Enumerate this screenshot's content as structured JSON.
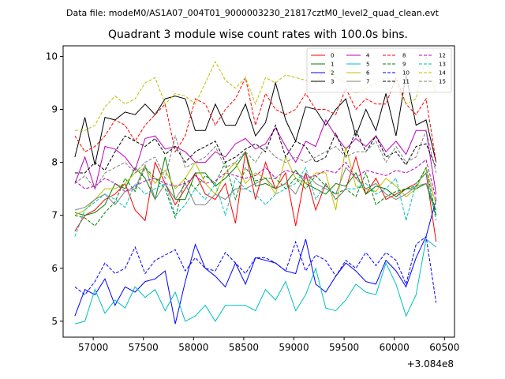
{
  "chart_data": {
    "type": "line",
    "suptitle": "Data file: modeM0/AS1A07_004T01_9000003230_21817cztM0_level2_quad_clean.evt",
    "title": "Quadrant 3 module wise count rates with 100.0s bins.",
    "xlabel": "",
    "ylabel": "",
    "x_offset_label": "+3.084e8",
    "xlim": [
      56700,
      60600
    ],
    "ylim": [
      4.7,
      10.2
    ],
    "xticks": [
      57000,
      57500,
      58000,
      58500,
      59000,
      59500,
      60000,
      60500
    ],
    "xtick_labels": [
      "57000",
      "57500",
      "58000",
      "58500",
      "59000",
      "59500",
      "60000",
      "60500"
    ],
    "yticks": [
      5,
      6,
      7,
      8,
      9,
      10
    ],
    "ytick_labels": [
      "5",
      "6",
      "7",
      "8",
      "9",
      "10"
    ],
    "x": [
      56817,
      56917,
      57017,
      57117,
      57217,
      57317,
      57417,
      57517,
      57617,
      57717,
      57817,
      57917,
      58017,
      58117,
      58217,
      58317,
      58417,
      58517,
      58617,
      58717,
      58817,
      58917,
      59017,
      59117,
      59217,
      59317,
      59417,
      59517,
      59617,
      59717,
      59817,
      59917,
      60017,
      60117,
      60217,
      60317,
      60417
    ],
    "series": [
      {
        "name": "0",
        "color": "#ff0000",
        "dash": "solid",
        "values": [
          6.7,
          7.0,
          7.1,
          7.3,
          7.4,
          7.6,
          7.1,
          6.9,
          8.0,
          7.6,
          7.2,
          7.5,
          7.8,
          7.4,
          7.3,
          7.6,
          6.85,
          8.2,
          7.3,
          8.0,
          7.5,
          7.8,
          6.8,
          7.8,
          7.1,
          7.6,
          7.3,
          7.5,
          8.1,
          7.4,
          7.7,
          7.3,
          7.4,
          7.5,
          7.6,
          7.8,
          6.5
        ]
      },
      {
        "name": "1",
        "color": "#008000",
        "dash": "solid",
        "values": [
          7.05,
          7.0,
          7.05,
          7.2,
          7.6,
          7.5,
          7.9,
          7.7,
          7.3,
          8.1,
          7.3,
          7.3,
          7.8,
          7.8,
          7.55,
          7.7,
          7.9,
          8.2,
          7.55,
          7.6,
          7.5,
          7.6,
          7.85,
          7.6,
          7.5,
          7.4,
          7.6,
          7.55,
          7.8,
          7.4,
          7.55,
          7.5,
          7.35,
          7.5,
          7.5,
          7.6,
          7.0
        ]
      },
      {
        "name": "2",
        "color": "#0000ff",
        "dash": "solid",
        "values": [
          5.1,
          5.6,
          5.5,
          5.8,
          5.3,
          5.65,
          5.55,
          5.75,
          5.8,
          5.95,
          4.95,
          5.75,
          6.45,
          6.0,
          5.85,
          5.65,
          6.1,
          5.7,
          6.2,
          6.15,
          6.1,
          5.95,
          5.9,
          6.55,
          5.7,
          5.55,
          5.85,
          6.1,
          5.95,
          5.75,
          5.7,
          6.15,
          5.95,
          5.65,
          6.2,
          6.6,
          7.3
        ]
      },
      {
        "name": "3",
        "color": "#000000",
        "dash": "solid",
        "values": [
          8.1,
          8.85,
          7.95,
          8.85,
          8.8,
          8.95,
          8.9,
          9.1,
          8.9,
          9.2,
          9.25,
          9.2,
          8.6,
          8.6,
          9.1,
          8.7,
          8.7,
          9.1,
          8.5,
          8.75,
          9.5,
          8.8,
          8.4,
          9.05,
          9.0,
          8.7,
          9.0,
          9.2,
          8.5,
          9.0,
          8.6,
          9.3,
          8.5,
          9.65,
          8.7,
          8.8,
          8.0
        ]
      },
      {
        "name": "4",
        "color": "#bf00bf",
        "dash": "solid",
        "values": [
          7.6,
          8.1,
          7.5,
          8.3,
          8.25,
          8.1,
          7.85,
          8.45,
          8.5,
          8.25,
          8.3,
          8.2,
          8.0,
          8.0,
          8.2,
          8.1,
          8.35,
          8.45,
          8.25,
          8.35,
          8.65,
          8.3,
          8.0,
          8.4,
          8.3,
          8.8,
          8.5,
          8.25,
          8.45,
          8.3,
          8.5,
          8.2,
          8.4,
          8.15,
          8.6,
          8.6,
          7.4
        ]
      },
      {
        "name": "5",
        "color": "#00bfbf",
        "dash": "solid",
        "values": [
          4.95,
          5.0,
          5.6,
          5.15,
          5.4,
          5.25,
          5.65,
          5.45,
          5.6,
          5.2,
          5.55,
          5.0,
          5.1,
          5.3,
          5.0,
          5.3,
          5.3,
          5.3,
          5.2,
          5.6,
          5.4,
          5.75,
          5.2,
          5.5,
          6.0,
          5.25,
          5.2,
          5.4,
          5.7,
          5.55,
          5.5,
          6.1,
          5.7,
          5.1,
          5.5,
          6.55,
          6.4
        ]
      },
      {
        "name": "6",
        "color": "#bfbf00",
        "dash": "solid",
        "values": [
          7.0,
          7.1,
          7.3,
          7.5,
          7.5,
          7.6,
          7.8,
          7.9,
          7.6,
          7.85,
          7.5,
          7.7,
          8.0,
          7.6,
          7.4,
          7.8,
          8.0,
          7.6,
          7.8,
          7.7,
          7.4,
          8.1,
          7.7,
          7.6,
          7.8,
          7.8,
          7.1,
          8.3,
          7.55,
          7.5,
          7.45,
          7.7,
          7.55,
          7.35,
          7.5,
          7.9,
          7.2
        ]
      },
      {
        "name": "7",
        "color": "#808080",
        "dash": "solid",
        "values": [
          7.1,
          7.15,
          7.3,
          7.4,
          7.2,
          7.45,
          7.5,
          7.95,
          7.3,
          7.6,
          7.3,
          7.6,
          7.2,
          7.2,
          7.4,
          7.3,
          7.5,
          7.5,
          7.6,
          7.7,
          7.5,
          7.6,
          7.4,
          7.8,
          7.6,
          7.5,
          7.4,
          7.9,
          7.7,
          7.5,
          7.6,
          7.4,
          7.3,
          7.4,
          7.55,
          7.6,
          7.1
        ]
      },
      {
        "name": "8",
        "color": "#ff0000",
        "dash": "dashed",
        "values": [
          8.5,
          8.2,
          8.3,
          8.5,
          8.8,
          8.7,
          8.4,
          8.7,
          8.9,
          9.1,
          8.2,
          8.5,
          9.2,
          9.1,
          8.7,
          9.0,
          9.2,
          9.6,
          8.7,
          9.3,
          9.0,
          8.9,
          9.0,
          9.3,
          9.0,
          9.0,
          8.9,
          9.4,
          9.0,
          9.2,
          9.1,
          9.1,
          9.6,
          9.1,
          8.9,
          9.2,
          8.0
        ]
      },
      {
        "name": "9",
        "color": "#008000",
        "dash": "dashed",
        "values": [
          7.0,
          6.95,
          6.8,
          7.05,
          7.25,
          7.7,
          7.45,
          7.9,
          7.7,
          7.5,
          6.95,
          7.7,
          7.5,
          7.75,
          7.6,
          8.0,
          7.3,
          7.9,
          7.65,
          7.7,
          7.7,
          7.5,
          7.7,
          7.5,
          7.75,
          7.55,
          7.4,
          7.5,
          7.35,
          7.8,
          7.2,
          7.35,
          7.45,
          7.5,
          7.55,
          7.9,
          7.0
        ]
      },
      {
        "name": "10",
        "color": "#0000ff",
        "dash": "dashed",
        "values": [
          5.65,
          5.5,
          5.75,
          6.1,
          5.9,
          6.0,
          6.4,
          5.9,
          6.15,
          6.25,
          6.35,
          5.95,
          6.2,
          6.0,
          5.95,
          6.3,
          6.1,
          5.9,
          6.2,
          6.2,
          6.1,
          5.95,
          6.5,
          5.95,
          6.25,
          6.15,
          5.85,
          6.15,
          6.0,
          6.3,
          6.05,
          6.3,
          6.15,
          5.7,
          6.45,
          6.6,
          5.35
        ]
      },
      {
        "name": "11",
        "color": "#000000",
        "dash": "dashed",
        "values": [
          7.8,
          7.8,
          8.0,
          7.85,
          8.2,
          8.5,
          8.4,
          8.3,
          8.45,
          8.15,
          8.3,
          8.0,
          8.2,
          8.3,
          8.4,
          8.0,
          8.1,
          8.25,
          8.35,
          8.2,
          8.7,
          8.1,
          8.4,
          8.3,
          8.0,
          8.1,
          8.55,
          8.1,
          8.6,
          8.2,
          8.5,
          8.1,
          8.2,
          7.95,
          8.3,
          8.35,
          7.9
        ]
      },
      {
        "name": "12",
        "color": "#bf00bf",
        "dash": "dashed",
        "values": [
          7.65,
          7.5,
          7.55,
          7.7,
          7.6,
          7.45,
          7.55,
          7.65,
          7.7,
          7.6,
          7.55,
          7.6,
          7.75,
          7.6,
          7.65,
          7.8,
          7.75,
          7.7,
          7.75,
          7.9,
          7.7,
          7.85,
          7.8,
          7.7,
          7.75,
          7.85,
          7.8,
          8.0,
          7.7,
          7.85,
          7.8,
          7.75,
          7.85,
          7.8,
          7.9,
          8.05,
          7.3
        ]
      },
      {
        "name": "13",
        "color": "#00bfbf",
        "dash": "dashed",
        "values": [
          6.6,
          7.1,
          7.25,
          7.4,
          7.3,
          7.15,
          7.6,
          7.4,
          7.5,
          7.6,
          7.0,
          7.2,
          7.5,
          7.3,
          7.6,
          7.0,
          7.7,
          7.5,
          7.4,
          7.2,
          7.4,
          7.5,
          7.6,
          7.9,
          7.3,
          7.6,
          7.3,
          7.5,
          7.5,
          7.6,
          7.4,
          7.5,
          7.7,
          6.9,
          7.6,
          7.8,
          6.9
        ]
      },
      {
        "name": "14",
        "color": "#bfbf00",
        "dash": "dashed",
        "values": [
          8.6,
          8.6,
          8.7,
          9.05,
          9.25,
          9.1,
          9.2,
          9.5,
          9.6,
          9.1,
          9.3,
          9.25,
          9.1,
          9.5,
          9.9,
          9.55,
          9.4,
          9.6,
          9.1,
          9.6,
          9.5,
          9.65,
          9.6,
          9.55,
          9.5,
          9.8,
          9.6,
          9.5,
          9.3,
          9.4,
          9.5,
          9.6,
          9.5,
          9.1,
          9.2,
          10.0,
          9.3
        ]
      },
      {
        "name": "15",
        "color": "#808080",
        "dash": "dashed",
        "values": [
          7.6,
          7.75,
          7.5,
          7.8,
          7.9,
          8.0,
          7.8,
          8.0,
          8.1,
          7.7,
          8.5,
          7.9,
          8.0,
          8.1,
          8.3,
          7.9,
          8.0,
          8.2,
          8.0,
          8.3,
          8.1,
          8.0,
          8.1,
          8.0,
          8.1,
          8.2,
          8.3,
          8.1,
          8.2,
          8.2,
          8.4,
          8.0,
          8.3,
          8.0,
          8.1,
          8.6,
          7.8
        ]
      }
    ]
  }
}
